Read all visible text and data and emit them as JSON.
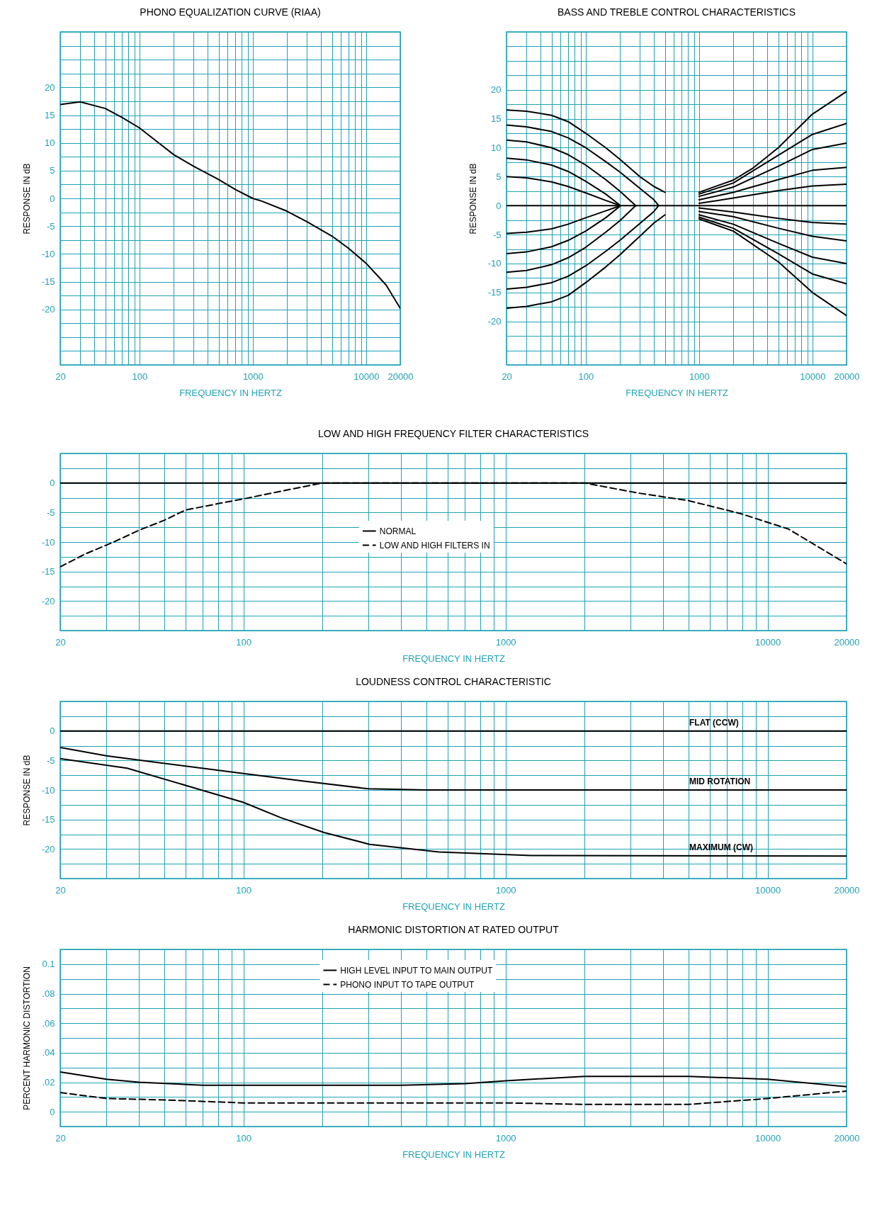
{
  "chart_data": [
    {
      "type": "line",
      "title": "PHONO EQUALIZATION CURVE (RIAA)",
      "xlabel": "FREQUENCY IN HERTZ",
      "ylabel": "RESPONSE IN dB",
      "log": "x",
      "grid": true,
      "xlim": [
        20,
        20000
      ],
      "xticks": [
        20,
        {
          "value": 30,
          "label": null
        },
        {
          "value": 40,
          "label": null
        },
        {
          "value": 50,
          "label": null
        },
        {
          "value": 60,
          "label": null
        },
        {
          "value": 70,
          "label": null
        },
        {
          "value": 80,
          "label": null
        },
        {
          "value": 90,
          "label": null
        },
        100,
        {
          "value": 200,
          "label": null
        },
        {
          "value": 300,
          "label": null
        },
        {
          "value": 400,
          "label": null
        },
        {
          "value": 500,
          "label": null
        },
        {
          "value": 600,
          "label": null
        },
        {
          "value": 700,
          "label": null
        },
        {
          "value": 800,
          "label": null
        },
        {
          "value": 900,
          "label": null
        },
        1000,
        {
          "value": 2000,
          "label": null
        },
        {
          "value": 3000,
          "label": null
        },
        {
          "value": 4000,
          "label": null
        },
        {
          "value": 5000,
          "label": null
        },
        {
          "value": 6000,
          "label": null
        },
        {
          "value": 7000,
          "label": null
        },
        {
          "value": 8000,
          "label": null
        },
        {
          "value": 9000,
          "label": null
        },
        10000,
        20000
      ],
      "ylim": [
        -30,
        30
      ],
      "yticks": [
        {
          "value": -30,
          "label": null
        },
        {
          "value": -27.5,
          "label": null
        },
        {
          "value": -25,
          "label": null
        },
        {
          "value": -22.5,
          "label": null
        },
        -20,
        {
          "value": -17.5,
          "label": null
        },
        -15,
        {
          "value": -12.5,
          "label": null
        },
        -10,
        {
          "value": -7.5,
          "label": null
        },
        -5,
        {
          "value": -2.5,
          "label": null
        },
        0,
        {
          "value": 2.5,
          "label": null
        },
        5,
        {
          "value": 7.5,
          "label": null
        },
        10,
        {
          "value": 12.5,
          "label": null
        },
        15,
        {
          "value": 17.5,
          "label": null
        },
        20,
        {
          "value": 22.5,
          "label": null
        },
        {
          "value": 25,
          "label": null
        },
        {
          "value": 27.5,
          "label": null
        },
        {
          "value": 30,
          "label": null
        }
      ],
      "series": [
        {
          "color": "#000000",
          "x": [
            20,
            30,
            50,
            70,
            100,
            150,
            200,
            300,
            500,
            700,
            1000,
            1200,
            2000,
            3000,
            5000,
            7000,
            10000,
            15000,
            20000
          ],
          "values": [
            16.9,
            17.4,
            16.2,
            14.6,
            12.7,
            9.9,
            7.9,
            5.8,
            3.4,
            1.6,
            0,
            -0.5,
            -2.3,
            -4.2,
            -6.8,
            -9.0,
            -11.7,
            -15.6,
            -19.8
          ]
        }
      ]
    },
    {
      "type": "line",
      "title": "BASS AND TREBLE CONTROL CHARACTERISTICS",
      "xlabel": "FREQUENCY IN HERTZ",
      "ylabel": "RESPONSE IN dB",
      "log": "x",
      "grid": true,
      "xlim": [
        20,
        20000
      ],
      "xticks": [
        20,
        {
          "value": 30,
          "label": null
        },
        {
          "value": 40,
          "label": null
        },
        {
          "value": 50,
          "label": null
        },
        {
          "value": 60,
          "label": null
        },
        {
          "value": 70,
          "label": null
        },
        {
          "value": 80,
          "label": null
        },
        {
          "value": 90,
          "label": null
        },
        100,
        {
          "value": 200,
          "label": null
        },
        {
          "value": 300,
          "label": null
        },
        {
          "value": 400,
          "label": null
        },
        {
          "value": 500,
          "label": null
        },
        {
          "value": 600,
          "label": null
        },
        {
          "value": 700,
          "label": null
        },
        {
          "value": 800,
          "label": null
        },
        {
          "value": 900,
          "label": null
        },
        1000,
        {
          "value": 2000,
          "label": null
        },
        {
          "value": 3000,
          "label": null
        },
        {
          "value": 4000,
          "label": null
        },
        {
          "value": 5000,
          "label": null
        },
        {
          "value": 6000,
          "label": null
        },
        {
          "value": 7000,
          "label": null
        },
        {
          "value": 8000,
          "label": null
        },
        {
          "value": 9000,
          "label": null
        },
        10000,
        20000
      ],
      "ylim": [
        -27.5,
        30
      ],
      "yticks": [
        {
          "value": -27.5,
          "label": null
        },
        {
          "value": -25,
          "label": null
        },
        {
          "value": -22.5,
          "label": null
        },
        -20,
        {
          "value": -17.5,
          "label": null
        },
        -15,
        {
          "value": -12.5,
          "label": null
        },
        -10,
        {
          "value": -7.5,
          "label": null
        },
        -5,
        {
          "value": -2.5,
          "label": null
        },
        0,
        {
          "value": 2.5,
          "label": null
        },
        5,
        {
          "value": 7.5,
          "label": null
        },
        10,
        {
          "value": 12.5,
          "label": null
        },
        15,
        {
          "value": 17.5,
          "label": null
        },
        20,
        {
          "value": 22.5,
          "label": null
        },
        {
          "value": 25,
          "label": null
        },
        {
          "value": 27.5,
          "label": null
        },
        {
          "value": 30,
          "label": null
        }
      ],
      "series": [
        {
          "color": "#000000",
          "x": [
            20,
            20000
          ],
          "values": [
            0,
            0
          ]
        },
        {
          "color": "#000000",
          "x": [
            20,
            30,
            50,
            70,
            100,
            150,
            200,
            300,
            400,
            500
          ],
          "values": [
            16.5,
            16.3,
            15.6,
            14.5,
            12.5,
            10.0,
            8.0,
            5.0,
            3.3,
            2.3
          ]
        },
        {
          "color": "#000000",
          "x": [
            20,
            30,
            50,
            70,
            100,
            150,
            200,
            300,
            400,
            440
          ],
          "values": [
            13.9,
            13.6,
            12.8,
            11.7,
            10.0,
            7.6,
            5.8,
            3.0,
            1.0,
            0
          ]
        },
        {
          "color": "#000000",
          "x": [
            20,
            30,
            50,
            70,
            100,
            150,
            200,
            276
          ],
          "values": [
            11.3,
            11.0,
            10.0,
            8.8,
            7.0,
            4.5,
            2.5,
            0
          ]
        },
        {
          "color": "#000000",
          "x": [
            20,
            30,
            50,
            70,
            100,
            150,
            203
          ],
          "values": [
            8.2,
            7.9,
            7.0,
            5.9,
            4.2,
            2.0,
            0
          ]
        },
        {
          "color": "#000000",
          "x": [
            20,
            30,
            50,
            70,
            100,
            150,
            203
          ],
          "values": [
            5.0,
            4.8,
            4.1,
            3.3,
            2.2,
            0.9,
            0
          ]
        },
        {
          "color": "#000000",
          "x": [
            20,
            30,
            50,
            70,
            100,
            150,
            203
          ],
          "values": [
            -4.8,
            -4.6,
            -4.0,
            -3.2,
            -2.1,
            -0.9,
            0
          ]
        },
        {
          "color": "#000000",
          "x": [
            20,
            30,
            50,
            70,
            100,
            150,
            203
          ],
          "values": [
            -8.3,
            -8.0,
            -7.1,
            -6.0,
            -4.4,
            -2.1,
            0
          ]
        },
        {
          "color": "#000000",
          "x": [
            20,
            30,
            50,
            70,
            100,
            150,
            200,
            276
          ],
          "values": [
            -11.5,
            -11.2,
            -10.2,
            -9.0,
            -7.2,
            -4.6,
            -2.6,
            0
          ]
        },
        {
          "color": "#000000",
          "x": [
            20,
            30,
            50,
            70,
            100,
            150,
            200,
            300,
            400,
            440
          ],
          "values": [
            -14.4,
            -14.1,
            -13.3,
            -12.2,
            -10.4,
            -7.9,
            -6.0,
            -3.1,
            -1.0,
            0
          ]
        },
        {
          "color": "#000000",
          "x": [
            20,
            30,
            50,
            70,
            100,
            150,
            200,
            300,
            400,
            500
          ],
          "values": [
            -17.7,
            -17.4,
            -16.6,
            -15.5,
            -13.3,
            -10.6,
            -8.5,
            -5.3,
            -3.0,
            -1.6
          ]
        },
        {
          "color": "#000000",
          "x": [
            1000,
            2000,
            3000,
            5000,
            10000,
            20000
          ],
          "values": [
            2.3,
            4.4,
            6.5,
            10.0,
            15.8,
            19.7
          ]
        },
        {
          "color": "#000000",
          "x": [
            1000,
            2000,
            5000,
            10000,
            20000
          ],
          "values": [
            2.0,
            3.9,
            8.7,
            12.3,
            14.2
          ]
        },
        {
          "color": "#000000",
          "x": [
            1000,
            2000,
            5000,
            10000,
            20000
          ],
          "values": [
            1.6,
            3.2,
            6.8,
            9.7,
            10.8
          ]
        },
        {
          "color": "#000000",
          "x": [
            1000,
            2000,
            5000,
            10000,
            20000
          ],
          "values": [
            1.0,
            2.3,
            4.5,
            6.1,
            6.6
          ]
        },
        {
          "color": "#000000",
          "x": [
            1000,
            2000,
            5000,
            10000,
            20000
          ],
          "values": [
            0.4,
            1.3,
            2.6,
            3.4,
            3.7
          ]
        },
        {
          "color": "#000000",
          "x": [
            1000,
            2000,
            5000,
            10000,
            20000
          ],
          "values": [
            -0.4,
            -1.1,
            -2.2,
            -2.9,
            -3.2
          ]
        },
        {
          "color": "#000000",
          "x": [
            1000,
            2000,
            5000,
            10000,
            20000
          ],
          "values": [
            -1.0,
            -1.9,
            -3.9,
            -5.3,
            -6.1
          ]
        },
        {
          "color": "#000000",
          "x": [
            1000,
            2000,
            5000,
            10000,
            20000
          ],
          "values": [
            -1.6,
            -3.2,
            -6.5,
            -8.9,
            -10.0
          ]
        },
        {
          "color": "#000000",
          "x": [
            1000,
            2000,
            5000,
            10000,
            20000
          ],
          "values": [
            -2.0,
            -3.9,
            -8.3,
            -11.8,
            -13.5
          ]
        },
        {
          "color": "#000000",
          "x": [
            1000,
            2000,
            5000,
            10000,
            20000
          ],
          "values": [
            -2.3,
            -4.4,
            -9.7,
            -15.0,
            -19.0
          ]
        }
      ]
    },
    {
      "type": "line",
      "title": "LOW AND HIGH FREQUENCY FILTER CHARACTERISTICS",
      "xlabel": "FREQUENCY IN HERTZ",
      "log": "x",
      "grid": true,
      "legend": "center",
      "xlim": [
        20,
        20000
      ],
      "xticks": [
        20,
        {
          "value": 30,
          "label": null
        },
        {
          "value": 40,
          "label": null
        },
        {
          "value": 50,
          "label": null
        },
        {
          "value": 60,
          "label": null
        },
        {
          "value": 70,
          "label": null
        },
        {
          "value": 80,
          "label": null
        },
        {
          "value": 90,
          "label": null
        },
        100,
        {
          "value": 200,
          "label": null
        },
        {
          "value": 300,
          "label": null
        },
        {
          "value": 400,
          "label": null
        },
        {
          "value": 500,
          "label": null
        },
        {
          "value": 600,
          "label": null
        },
        {
          "value": 700,
          "label": null
        },
        {
          "value": 800,
          "label": null
        },
        {
          "value": 900,
          "label": null
        },
        1000,
        {
          "value": 2000,
          "label": null
        },
        {
          "value": 3000,
          "label": null
        },
        {
          "value": 4000,
          "label": null
        },
        {
          "value": 5000,
          "label": null
        },
        {
          "value": 6000,
          "label": null
        },
        {
          "value": 7000,
          "label": null
        },
        {
          "value": 8000,
          "label": null
        },
        {
          "value": 9000,
          "label": null
        },
        10000,
        20000
      ],
      "ylim": [
        -25,
        5
      ],
      "yticks": [
        {
          "value": -25,
          "label": null
        },
        {
          "value": -22.5,
          "label": null
        },
        -20,
        {
          "value": -17.5,
          "label": null
        },
        -15,
        {
          "value": -12.5,
          "label": null
        },
        -10,
        {
          "value": -7.5,
          "label": null
        },
        -5,
        {
          "value": -2.5,
          "label": null
        },
        0,
        {
          "value": 2.5,
          "label": null
        },
        {
          "value": 5,
          "label": null
        }
      ],
      "series": [
        {
          "name": "NORMAL",
          "color": "#000000",
          "line_style": "solid",
          "x": [
            20,
            20000
          ],
          "values": [
            0,
            0
          ]
        },
        {
          "name": "LOW AND HIGH FILTERS IN",
          "color": "#000000",
          "line_style": "dashed",
          "x": [
            20,
            25,
            32,
            40,
            50,
            60,
            80,
            100,
            150,
            200,
            2000,
            3200,
            5000,
            7900,
            12000,
            15300,
            20000
          ],
          "values": [
            -14.2,
            -12,
            -10,
            -8,
            -6.3,
            -4.6,
            -3.5,
            -2.7,
            -1.1,
            0,
            0,
            -1.7,
            -3,
            -5.2,
            -7.8,
            -10.6,
            -13.7
          ]
        }
      ]
    },
    {
      "type": "line",
      "title": "LOUDNESS CONTROL CHARACTERISTIC",
      "xlabel": "FREQUENCY IN HERTZ",
      "ylabel": "RESPONSE IN dB",
      "log": "x",
      "grid": true,
      "xlim": [
        20,
        20000
      ],
      "xticks": [
        20,
        {
          "value": 30,
          "label": null
        },
        {
          "value": 40,
          "label": null
        },
        {
          "value": 50,
          "label": null
        },
        {
          "value": 60,
          "label": null
        },
        {
          "value": 70,
          "label": null
        },
        {
          "value": 80,
          "label": null
        },
        {
          "value": 90,
          "label": null
        },
        100,
        {
          "value": 200,
          "label": null
        },
        {
          "value": 300,
          "label": null
        },
        {
          "value": 400,
          "label": null
        },
        {
          "value": 500,
          "label": null
        },
        {
          "value": 600,
          "label": null
        },
        {
          "value": 700,
          "label": null
        },
        {
          "value": 800,
          "label": null
        },
        {
          "value": 900,
          "label": null
        },
        1000,
        {
          "value": 2000,
          "label": null
        },
        {
          "value": 3000,
          "label": null
        },
        {
          "value": 4000,
          "label": null
        },
        {
          "value": 5000,
          "label": null
        },
        {
          "value": 6000,
          "label": null
        },
        {
          "value": 7000,
          "label": null
        },
        {
          "value": 8000,
          "label": null
        },
        {
          "value": 9000,
          "label": null
        },
        10000,
        20000
      ],
      "ylim": [
        -25,
        5
      ],
      "yticks": [
        {
          "value": -25,
          "label": null
        },
        {
          "value": -22.5,
          "label": null
        },
        -20,
        {
          "value": -17.5,
          "label": null
        },
        -15,
        {
          "value": -12.5,
          "label": null
        },
        -10,
        {
          "value": -7.5,
          "label": null
        },
        -5,
        {
          "value": -2.5,
          "label": null
        },
        0,
        {
          "value": 2.5,
          "label": null
        },
        {
          "value": 5,
          "label": null
        }
      ],
      "series": [
        {
          "name": "FLAT (CCW)",
          "color": "#000000",
          "x": [
            20,
            20000
          ],
          "values": [
            0,
            0
          ]
        },
        {
          "name": "MID ROTATION",
          "color": "#000000",
          "x": [
            20,
            30,
            50,
            100,
            170,
            300,
            500,
            20000
          ],
          "values": [
            -2.8,
            -4.2,
            -5.5,
            -7.2,
            -8.5,
            -9.8,
            -10,
            -10
          ]
        },
        {
          "name": "MAXIMUM (CW)",
          "color": "#000000",
          "x": [
            20,
            36,
            69,
            100,
            139,
            203,
            303,
            557,
            1250,
            20000
          ],
          "values": [
            -4.7,
            -6.3,
            -10,
            -12.1,
            -14.7,
            -17.2,
            -19.2,
            -20.5,
            -21.1,
            -21.2
          ]
        }
      ]
    },
    {
      "type": "line",
      "title": "HARMONIC DISTORTION AT RATED OUTPUT",
      "xlabel": "FREQUENCY IN HERTZ",
      "ylabel": "PERCENT HARMONIC DISTORTION",
      "log": "x",
      "grid": true,
      "legend": "top",
      "xlim": [
        20,
        20000
      ],
      "xticks": [
        20,
        {
          "value": 30,
          "label": null
        },
        {
          "value": 40,
          "label": null
        },
        {
          "value": 50,
          "label": null
        },
        {
          "value": 60,
          "label": null
        },
        {
          "value": 70,
          "label": null
        },
        {
          "value": 80,
          "label": null
        },
        {
          "value": 90,
          "label": null
        },
        100,
        {
          "value": 200,
          "label": null
        },
        {
          "value": 300,
          "label": null
        },
        {
          "value": 400,
          "label": null
        },
        {
          "value": 500,
          "label": null
        },
        {
          "value": 600,
          "label": null
        },
        {
          "value": 700,
          "label": null
        },
        {
          "value": 800,
          "label": null
        },
        {
          "value": 900,
          "label": null
        },
        1000,
        {
          "value": 2000,
          "label": null
        },
        {
          "value": 3000,
          "label": null
        },
        {
          "value": 4000,
          "label": null
        },
        {
          "value": 5000,
          "label": null
        },
        {
          "value": 6000,
          "label": null
        },
        {
          "value": 7000,
          "label": null
        },
        {
          "value": 8000,
          "label": null
        },
        {
          "value": 9000,
          "label": null
        },
        10000,
        20000
      ],
      "ylim": [
        -0.01,
        0.11
      ],
      "yticks": [
        {
          "value": -0.01,
          "label": null
        },
        0,
        {
          "value": 0.01,
          "label": null
        },
        {
          "value": 0.02,
          "label": ".02"
        },
        {
          "value": 0.03,
          "label": null
        },
        {
          "value": 0.04,
          "label": ".04"
        },
        {
          "value": 0.05,
          "label": null
        },
        {
          "value": 0.06,
          "label": ".06"
        },
        {
          "value": 0.07,
          "label": null
        },
        {
          "value": 0.08,
          "label": ".08"
        },
        {
          "value": 0.09,
          "label": null
        },
        0.1,
        {
          "value": 0.11,
          "label": null
        }
      ],
      "series": [
        {
          "name": "HIGH LEVEL INPUT TO MAIN OUTPUT",
          "color": "#000000",
          "line_style": "solid",
          "x": [
            20,
            30,
            40,
            70,
            400,
            700,
            1000,
            2000,
            5000,
            10000,
            20000
          ],
          "values": [
            0.027,
            0.022,
            0.02,
            0.018,
            0.018,
            0.019,
            0.021,
            0.024,
            0.024,
            0.022,
            0.017
          ]
        },
        {
          "name": "PHONO INPUT TO TAPE OUTPUT",
          "color": "#000000",
          "line_style": "dashed",
          "x": [
            20,
            30,
            50,
            100,
            1000,
            2000,
            5000,
            10000,
            20000
          ],
          "values": [
            0.013,
            0.009,
            0.008,
            0.006,
            0.006,
            0.005,
            0.005,
            0.009,
            0.014
          ]
        }
      ]
    }
  ]
}
